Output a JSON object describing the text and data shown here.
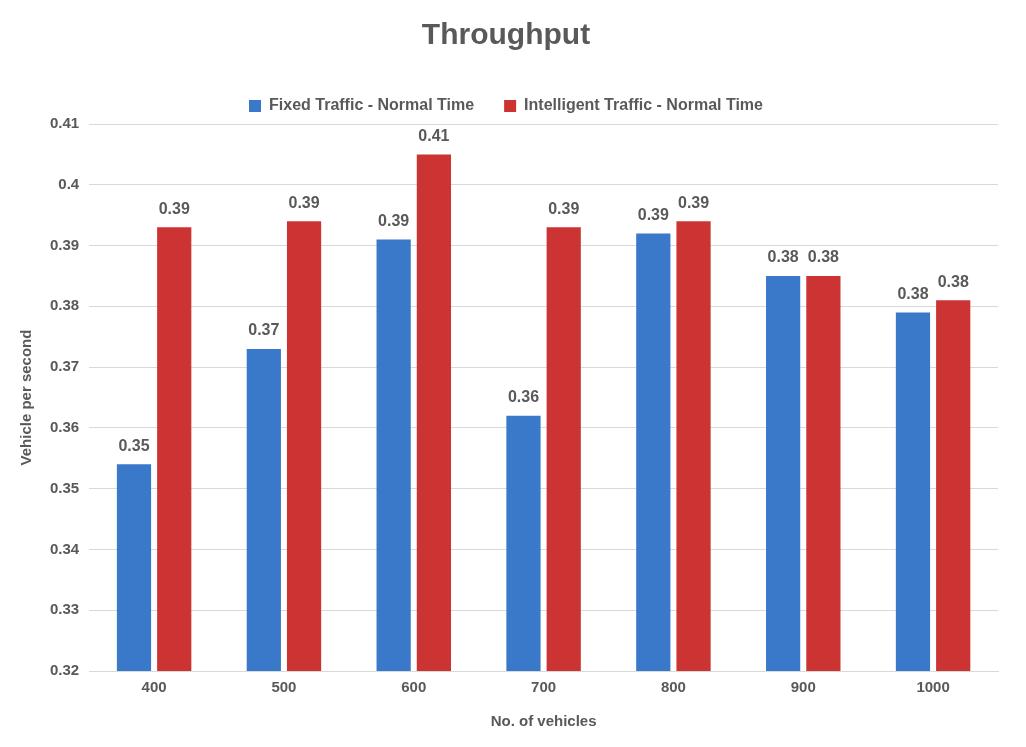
{
  "chart_data": {
    "type": "bar",
    "title": "Throughput",
    "xlabel": "No. of vehicles",
    "ylabel": "Vehicle per second",
    "categories": [
      "400",
      "500",
      "600",
      "700",
      "800",
      "900",
      "1000"
    ],
    "series": [
      {
        "name": "Fixed Traffic - Normal Time",
        "color": "#3a78c9",
        "values": [
          0.354,
          0.373,
          0.391,
          0.362,
          0.392,
          0.385,
          0.379
        ],
        "value_labels": [
          "0.35",
          "0.37",
          "0.39",
          "0.36",
          "0.39",
          "0.38",
          "0.38"
        ]
      },
      {
        "name": "Intelligent Traffic - Normal Time",
        "color": "#cc3333",
        "values": [
          0.393,
          0.394,
          0.405,
          0.393,
          0.394,
          0.385,
          0.381
        ],
        "value_labels": [
          "0.39",
          "0.39",
          "0.41",
          "0.39",
          "0.39",
          "0.38",
          "0.38"
        ]
      }
    ],
    "ylim": [
      0.32,
      0.41
    ],
    "yticks": [
      0.32,
      0.33,
      0.34,
      0.35,
      0.36,
      0.37,
      0.38,
      0.39,
      0.4,
      0.41
    ],
    "grid": "y",
    "legend": "top"
  }
}
